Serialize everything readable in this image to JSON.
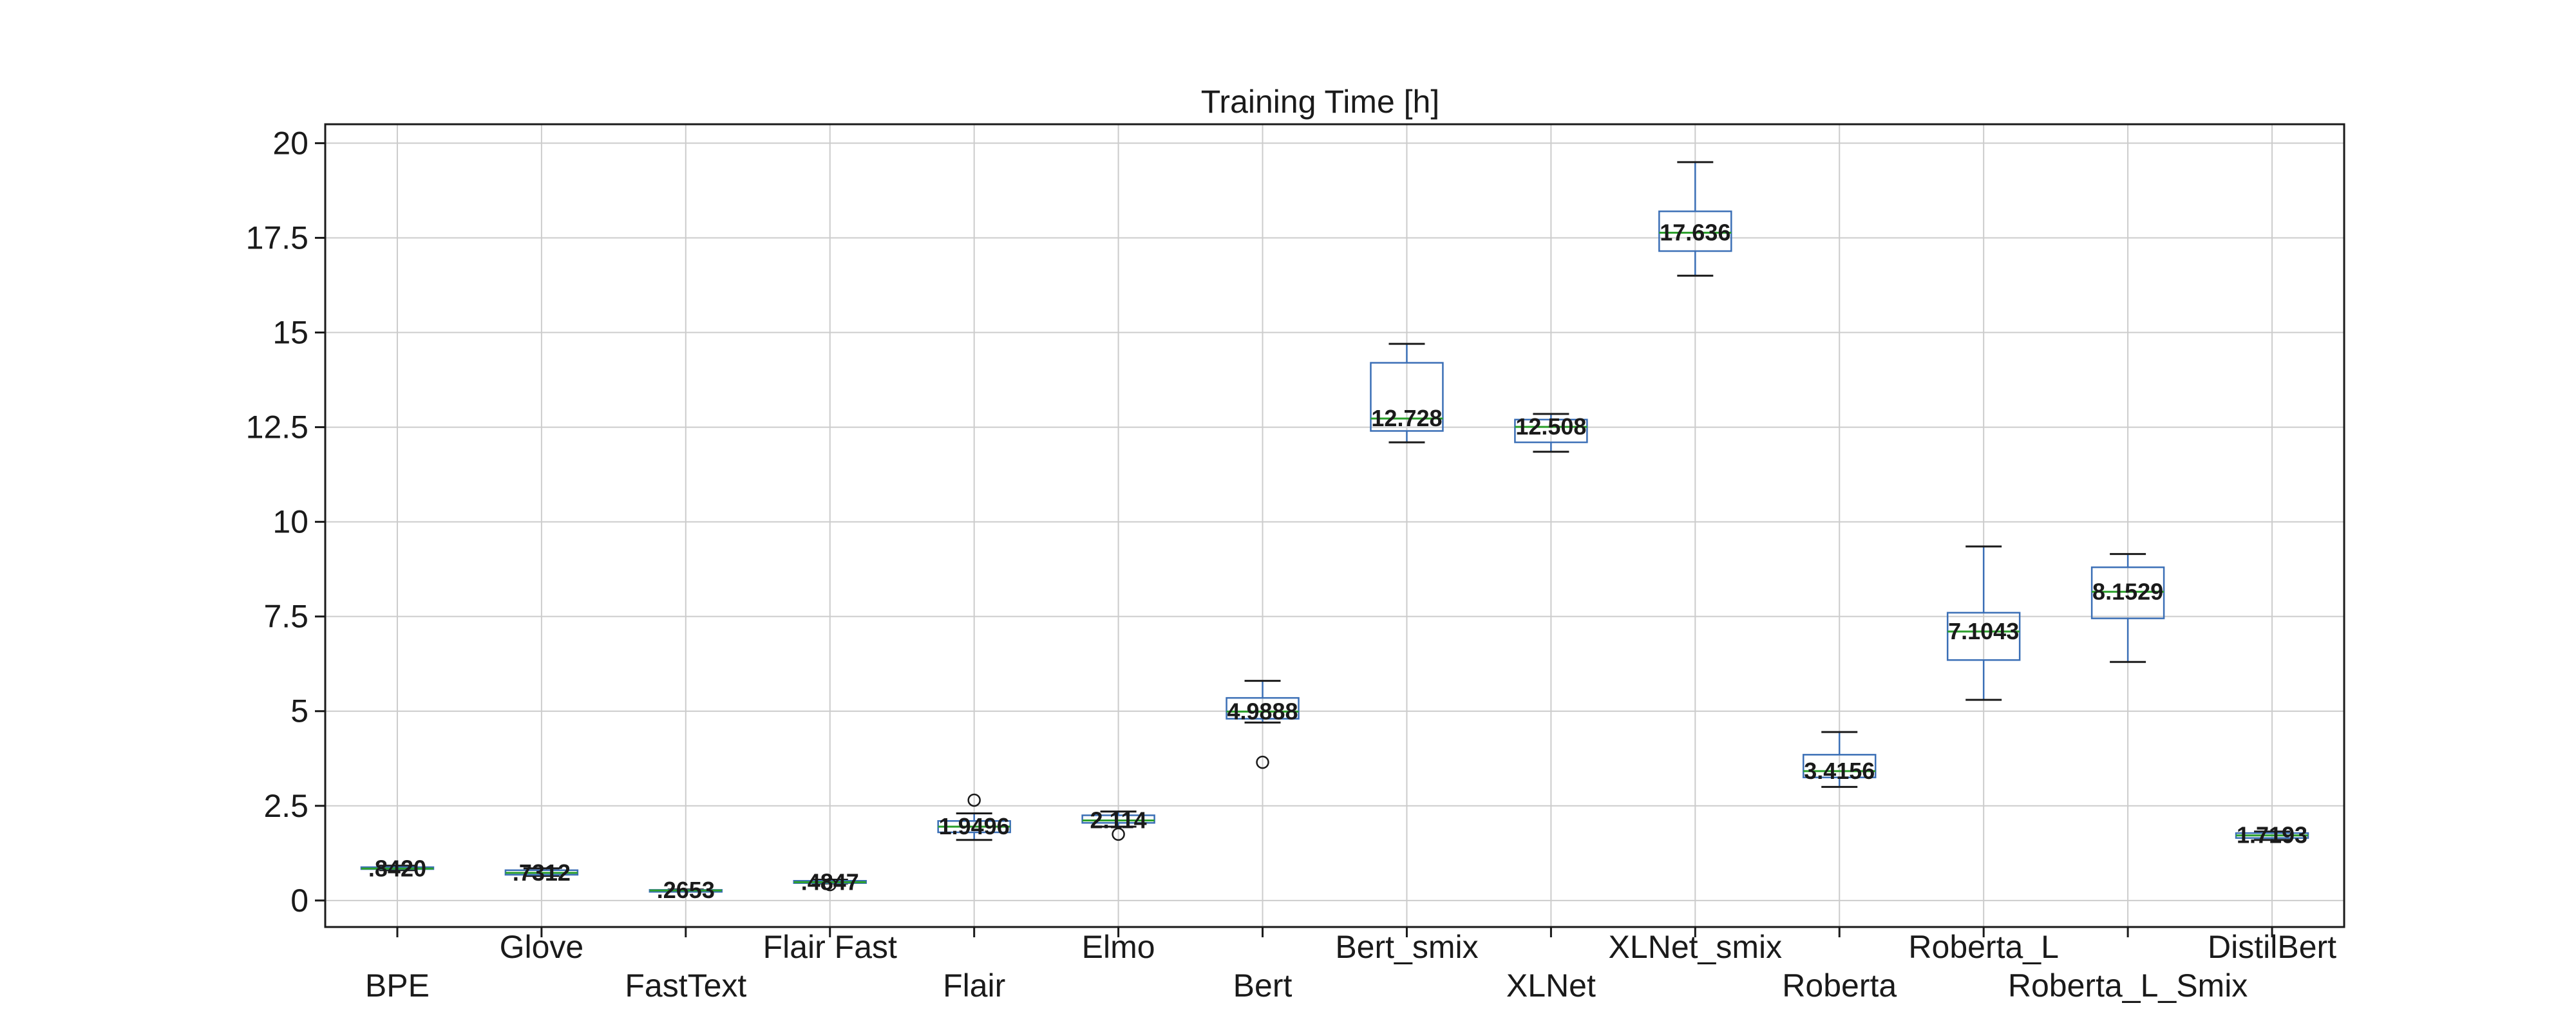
{
  "chart_data": {
    "type": "box",
    "title": "Training Time [h]",
    "xlabel": "",
    "ylabel": "",
    "ylim": [
      -0.7,
      20.5
    ],
    "yticks": [
      0,
      2.5,
      5,
      7.5,
      10,
      12.5,
      15,
      17.5,
      20
    ],
    "ytick_labels": [
      "0",
      "2.5",
      "5",
      "7.5",
      "10",
      "12.5",
      "15",
      "17.5",
      "20"
    ],
    "grid": true,
    "colors": {
      "box": "#3b6fb6",
      "median": "#2ca02c",
      "whisker": "#1a1a1a",
      "grid": "#cccccc",
      "axes": "#1a1a1a"
    },
    "categories": [
      "BPE",
      "Glove",
      "FastText",
      "Flair Fast",
      "Flair",
      "Elmo",
      "Bert",
      "Bert_smix",
      "XLNet",
      "XLNet_smix",
      "Roberta",
      "Roberta_L",
      "Roberta_L_Smix",
      "DistilBert"
    ],
    "boxes": [
      {
        "name": "BPE",
        "whislo": 0.8,
        "q1": 0.83,
        "med": 0.842,
        "q3": 0.88,
        "whishi": 0.92,
        "fliers": [],
        "label": ".8420"
      },
      {
        "name": "Glove",
        "whislo": 0.65,
        "q1": 0.68,
        "med": 0.7312,
        "q3": 0.8,
        "whishi": 0.85,
        "fliers": [],
        "label": ".7312"
      },
      {
        "name": "FastText",
        "whislo": 0.24,
        "q1": 0.255,
        "med": 0.2653,
        "q3": 0.28,
        "whishi": 0.29,
        "fliers": [],
        "label": ".2653"
      },
      {
        "name": "Flair Fast",
        "whislo": 0.45,
        "q1": 0.46,
        "med": 0.4847,
        "q3": 0.52,
        "whishi": 0.55,
        "fliers": [
          0.42
        ],
        "label": ".4847"
      },
      {
        "name": "Flair",
        "whislo": 1.6,
        "q1": 1.8,
        "med": 1.9496,
        "q3": 2.1,
        "whishi": 2.3,
        "fliers": [
          2.65
        ],
        "label": "1.9496"
      },
      {
        "name": "Elmo",
        "whislo": 1.95,
        "q1": 2.05,
        "med": 2.114,
        "q3": 2.25,
        "whishi": 2.35,
        "fliers": [
          1.75
        ],
        "label": "2.114"
      },
      {
        "name": "Bert",
        "whislo": 4.7,
        "q1": 4.8,
        "med": 4.9888,
        "q3": 5.35,
        "whishi": 5.8,
        "fliers": [
          3.65
        ],
        "label": "4.9888"
      },
      {
        "name": "Bert_smix",
        "whislo": 12.1,
        "q1": 12.4,
        "med": 12.728,
        "q3": 14.2,
        "whishi": 14.7,
        "fliers": [],
        "label": "12.728"
      },
      {
        "name": "XLNet",
        "whislo": 11.85,
        "q1": 12.1,
        "med": 12.508,
        "q3": 12.7,
        "whishi": 12.85,
        "fliers": [],
        "label": "12.508"
      },
      {
        "name": "XLNet_smix",
        "whislo": 16.5,
        "q1": 17.15,
        "med": 17.636,
        "q3": 18.2,
        "whishi": 19.5,
        "fliers": [],
        "label": "17.636"
      },
      {
        "name": "Roberta",
        "whislo": 3.0,
        "q1": 3.25,
        "med": 3.4156,
        "q3": 3.85,
        "whishi": 4.45,
        "fliers": [],
        "label": "3.4156"
      },
      {
        "name": "Roberta_L",
        "whislo": 5.3,
        "q1": 6.35,
        "med": 7.1043,
        "q3": 7.6,
        "whishi": 9.35,
        "fliers": [],
        "label": "7.1043"
      },
      {
        "name": "Roberta_L_Smix",
        "whislo": 6.3,
        "q1": 7.45,
        "med": 8.1529,
        "q3": 8.8,
        "whishi": 9.15,
        "fliers": [],
        "label": "8.1529"
      },
      {
        "name": "DistilBert",
        "whislo": 1.6,
        "q1": 1.65,
        "med": 1.7193,
        "q3": 1.78,
        "whishi": 1.82,
        "fliers": [],
        "label": "1.7193"
      }
    ]
  }
}
